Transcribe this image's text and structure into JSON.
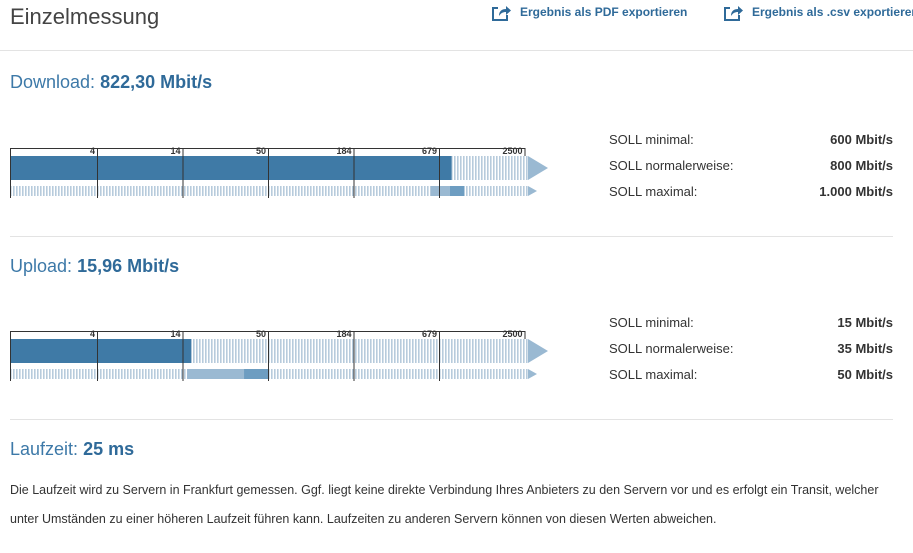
{
  "header": {
    "title": "Einzelmessung",
    "export_pdf_label": "Ergebnis als PDF exportieren",
    "export_csv_label": "Ergebnis als .csv exportieren"
  },
  "scale_ticks": [
    "4",
    "14",
    "50",
    "184",
    "679",
    "2500"
  ],
  "download": {
    "label": "Download:",
    "value": "822,30 Mbit/s",
    "measured_mbit": 822.3,
    "soll": [
      {
        "label": "SOLL minimal:",
        "value": "600 Mbit/s"
      },
      {
        "label": "SOLL normalerweise:",
        "value": "800 Mbit/s"
      },
      {
        "label": "SOLL maximal:",
        "value": "1.000 Mbit/s"
      }
    ],
    "range_min_mbit": 600,
    "range_normal_mbit": 800,
    "range_max_mbit": 1000
  },
  "upload": {
    "label": "Upload:",
    "value": "15,96 Mbit/s",
    "measured_mbit": 15.96,
    "soll": [
      {
        "label": "SOLL minimal:",
        "value": "15 Mbit/s"
      },
      {
        "label": "SOLL normalerweise:",
        "value": "35 Mbit/s"
      },
      {
        "label": "SOLL maximal:",
        "value": "50 Mbit/s"
      }
    ],
    "range_min_mbit": 15,
    "range_normal_mbit": 35,
    "range_max_mbit": 50
  },
  "latency": {
    "label": "Laufzeit:",
    "value": "25 ms",
    "description": "Die Laufzeit wird zu Servern in Frankfurt gemessen. Ggf. liegt keine direkte Verbindung Ihres Anbieters zu den Servern vor und es erfolgt ein Transit, welcher unter Umständen zu einer höheren Laufzeit führen kann. Laufzeiten zu anderen Servern können von diesen Werten abweichen."
  },
  "colors": {
    "accent": "#3d79a8",
    "bar_fill": "#3f7aa6",
    "stripe": "#b7cbdc",
    "range_light": "#9ab9d2",
    "range_dark": "#6d9dc1"
  }
}
